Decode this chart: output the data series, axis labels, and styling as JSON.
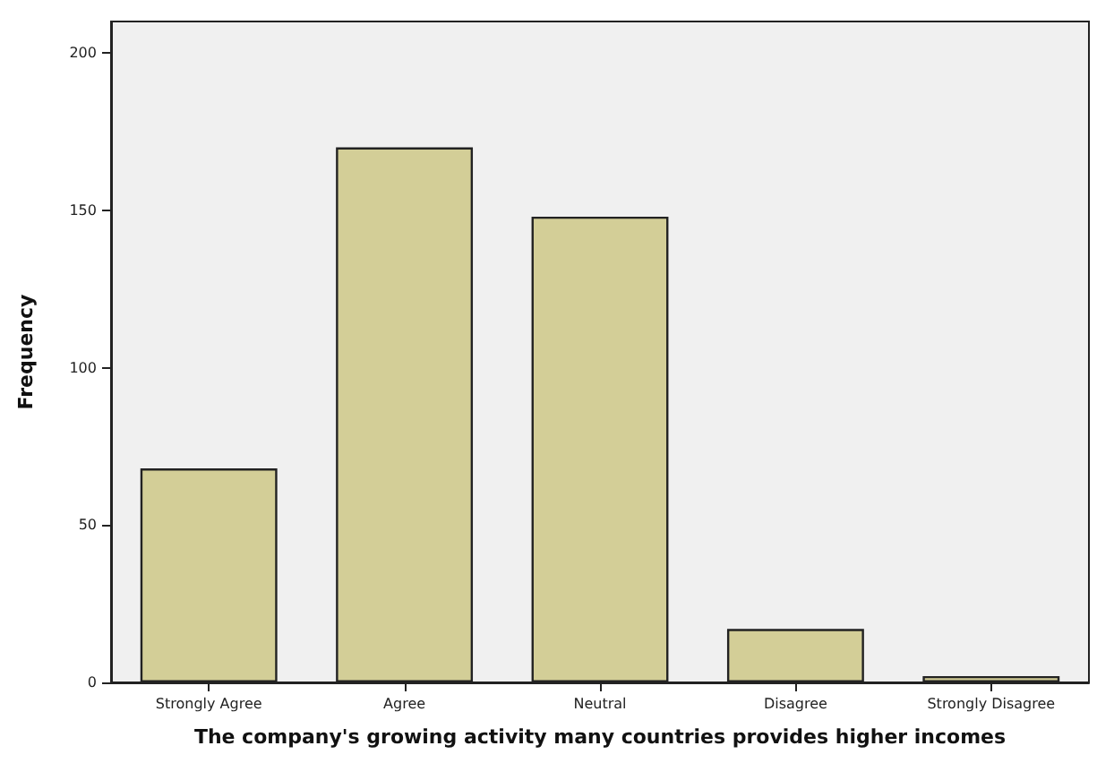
{
  "chart_data": {
    "type": "bar",
    "xlabel": "The company's growing activity many countries provides higher incomes",
    "ylabel": "Frequency",
    "categories": [
      "Strongly Agree",
      "Agree",
      "Neutral",
      "Disagree",
      "Strongly Disagree"
    ],
    "values": [
      68,
      170,
      148,
      17,
      2
    ],
    "color": "#d3ce97",
    "ylim": [
      0,
      210
    ],
    "yticks": [
      0,
      50,
      100,
      150,
      200
    ],
    "grid": false
  }
}
